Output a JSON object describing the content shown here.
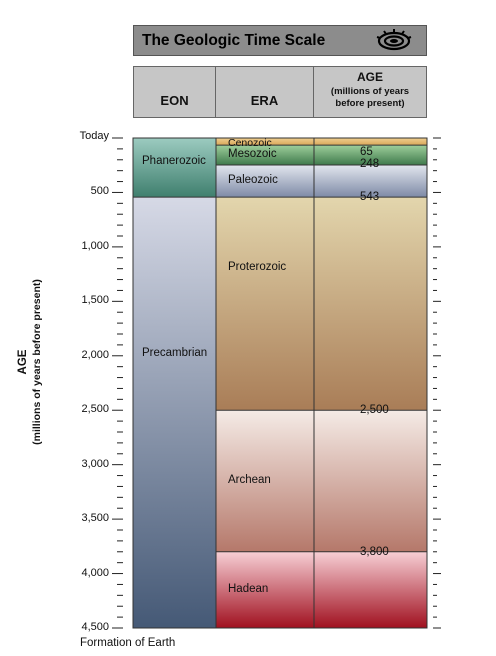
{
  "title": "The Geologic Time Scale",
  "headers": {
    "eon": "EON",
    "era": "ERA",
    "age_line1": "AGE",
    "age_line2": "(millions of years",
    "age_line3": "before present)"
  },
  "axis": {
    "label": "AGE",
    "sublabel": "(millions of years before present)",
    "top_label": "Today",
    "bottom_label": "Formation of Earth",
    "ticks": [
      "500",
      "1,000",
      "1,500",
      "2,000",
      "2,500",
      "3,000",
      "3,500",
      "4,000",
      "4,500"
    ]
  },
  "eons": [
    {
      "name": "Phanerozoic",
      "start": 0,
      "end": 543,
      "color_top": "#9ccbc0",
      "color_bottom": "#3f7f6e"
    },
    {
      "name": "Precambrian",
      "start": 543,
      "end": 4500,
      "color_top": "#d6d9e6",
      "color_bottom": "#455976"
    }
  ],
  "eras": [
    {
      "name": "Cenozoic",
      "start": 0,
      "end": 65,
      "color_top": "#f0cf90",
      "color_bottom": "#d9a85a"
    },
    {
      "name": "Mesozoic",
      "start": 65,
      "end": 248,
      "color_top": "#9fcf9c",
      "color_bottom": "#3f7a4c"
    },
    {
      "name": "Paleozoic",
      "start": 248,
      "end": 543,
      "color_top": "#e2e6ee",
      "color_bottom": "#7e8aa6"
    },
    {
      "name": "Proterozoic",
      "start": 543,
      "end": 2500,
      "color_top": "#e3d6ad",
      "color_bottom": "#a97d57"
    },
    {
      "name": "Archean",
      "start": 2500,
      "end": 3800,
      "color_top": "#f5ebe6",
      "color_bottom": "#b5786a"
    },
    {
      "name": "Hadean",
      "start": 3800,
      "end": 4500,
      "color_top": "#f7cfd5",
      "color_bottom": "#a0101f"
    }
  ],
  "age_boundaries": [
    "65",
    "248",
    "543",
    "2,500",
    "3,800"
  ],
  "colors": {
    "title_bg": "#8c8c8c",
    "header_bg": "#c6c6c6"
  },
  "logo_icon": "geologic-strata-logo"
}
